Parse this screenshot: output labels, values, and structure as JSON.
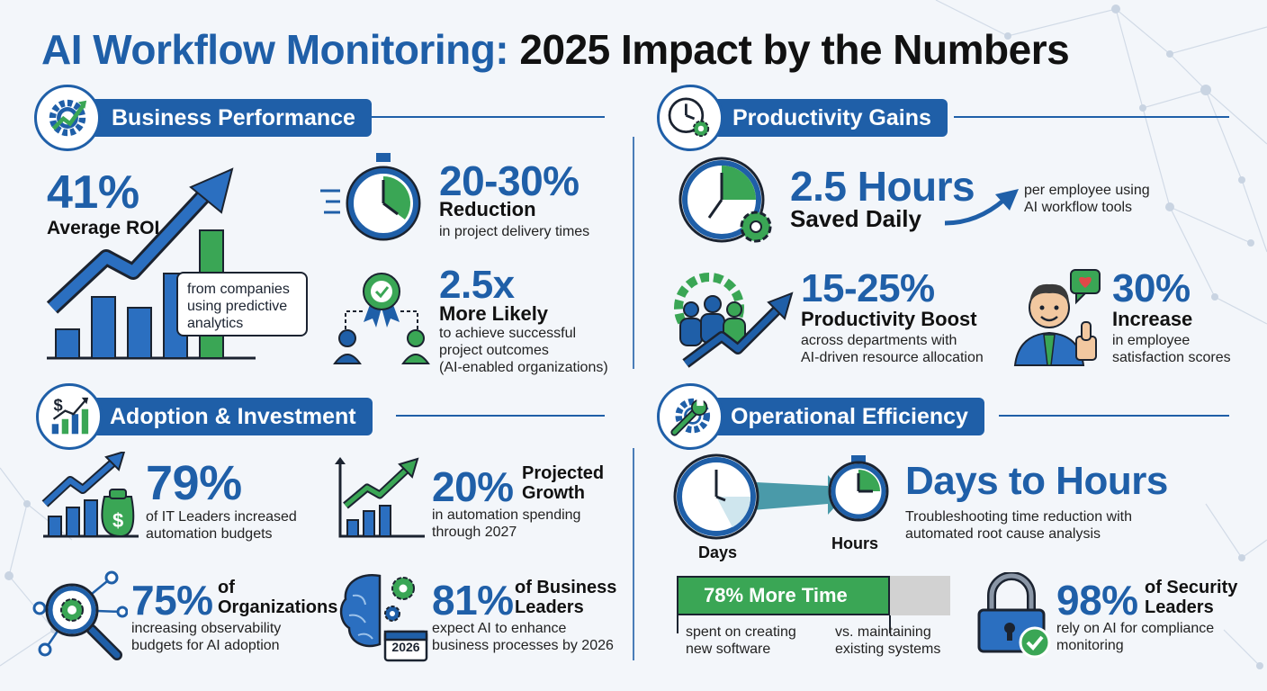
{
  "title": {
    "part1": "AI Workflow Monitoring:",
    "part2": "2025 Impact by the Numbers"
  },
  "colors": {
    "primary_blue": "#1f5fa8",
    "accent_green": "#3aa655",
    "dark": "#1b2330",
    "background": "#f3f6fa"
  },
  "business": {
    "heading": "Business Performance",
    "icon": "gear-arrow-icon",
    "roi": {
      "value": "41%",
      "label": "Average ROI",
      "callout": [
        "from companies",
        "using predictive",
        "analytics"
      ]
    },
    "delivery": {
      "value": "20-30%",
      "label": "Reduction",
      "desc": "in project delivery times"
    },
    "likely": {
      "value": "2.5x",
      "label": "More Likely",
      "desc": [
        "to achieve successful",
        "project outcomes",
        "(AI-enabled organizations)"
      ]
    }
  },
  "productivity": {
    "heading": "Productivity Gains",
    "icon": "clock-gear-icon",
    "hours": {
      "value": "2.5 Hours",
      "label": "Saved Daily",
      "desc": [
        "per employee using",
        "AI workflow tools"
      ]
    },
    "boost": {
      "value": "15-25%",
      "label": "Productivity Boost",
      "desc": [
        "across departments with",
        "AI-driven resource allocation"
      ]
    },
    "satisfaction": {
      "value": "30%",
      "label": "Increase",
      "desc": [
        "in employee",
        "satisfaction scores"
      ]
    }
  },
  "adoption": {
    "heading": "Adoption & Investment",
    "icon": "dollar-chart-icon",
    "it_leaders": {
      "value": "79%",
      "desc": [
        "of IT Leaders increased",
        "automation budgets"
      ]
    },
    "growth": {
      "value": "20%",
      "label": [
        "Projected",
        "Growth"
      ],
      "desc": [
        "in automation spending",
        "through 2027"
      ]
    },
    "orgs": {
      "value": "75%",
      "label": [
        "of",
        "Organizations"
      ],
      "desc": [
        "increasing observability",
        "budgets for AI adoption"
      ]
    },
    "biz_leaders": {
      "value": "81%",
      "label": [
        "of Business",
        "Leaders"
      ],
      "desc": [
        "expect AI to enhance",
        "business processes by 2026"
      ],
      "calendar_year": "2026"
    }
  },
  "operational": {
    "heading": "Operational Efficiency",
    "icon": "wrench-gear-icon",
    "days_hours": {
      "value": "Days to Hours",
      "from_label": "Days",
      "to_label": "Hours",
      "desc": [
        "Troubleshooting time reduction with",
        "automated root cause analysis"
      ]
    },
    "more_time": {
      "bar_label": "78% More Time",
      "fraction": 0.78,
      "left_desc": [
        "spent on creating",
        "new software"
      ],
      "right_desc": [
        "vs. maintaining",
        "existing systems"
      ]
    },
    "security": {
      "value": "98%",
      "label": [
        "of Security",
        "Leaders"
      ],
      "desc": [
        "rely on AI for compliance",
        "monitoring"
      ]
    }
  }
}
